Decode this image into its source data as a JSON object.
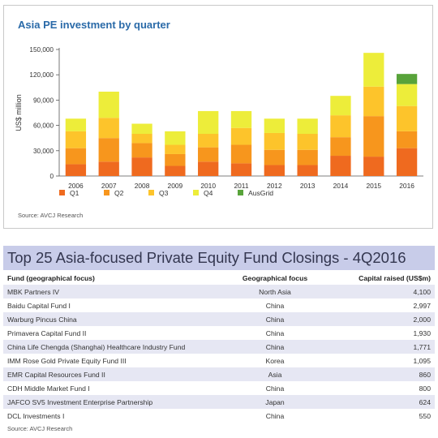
{
  "chart_data": {
    "type": "bar",
    "stacked": true,
    "title": "Asia PE investment by quarter",
    "ylabel": "US$ million",
    "ylim": [
      0,
      150000
    ],
    "yticks": [
      "0",
      "30,000",
      "60,000",
      "90,000",
      "120,000",
      "150,000"
    ],
    "categories": [
      "2006",
      "2007",
      "2008",
      "2009",
      "2010",
      "2011",
      "2012",
      "2013",
      "2014",
      "2015",
      "2016"
    ],
    "series": [
      {
        "name": "Q1",
        "color": "#ef6a1f",
        "values": [
          14000,
          17000,
          22000,
          12000,
          17000,
          15000,
          13000,
          13000,
          24000,
          23000,
          33000
        ]
      },
      {
        "name": "Q2",
        "color": "#f7961d",
        "values": [
          19000,
          28000,
          17000,
          14000,
          17000,
          22000,
          18000,
          18000,
          22000,
          48000,
          20000
        ]
      },
      {
        "name": "Q3",
        "color": "#fdc42b",
        "values": [
          20000,
          24000,
          11000,
          11000,
          16000,
          20000,
          20000,
          19000,
          26000,
          35000,
          30000
        ]
      },
      {
        "name": "Q4",
        "color": "#eded3a",
        "values": [
          15000,
          31000,
          12000,
          16000,
          27000,
          20000,
          17000,
          18000,
          23000,
          40000,
          26000
        ]
      },
      {
        "name": "AusGrid",
        "color": "#58a33a",
        "values": [
          0,
          0,
          0,
          0,
          0,
          0,
          0,
          0,
          0,
          0,
          12000
        ]
      }
    ],
    "source": "Source: AVCJ Research"
  },
  "table": {
    "title": "Top 25 Asia-focused Private Equity Fund Closings - 4Q2016",
    "headers": [
      "Fund (geographical focus)",
      "Geographical focus",
      "Capital raised (US$m)"
    ],
    "rows": [
      {
        "fund": "MBK Partners IV",
        "geo": "North Asia",
        "capital": "4,100"
      },
      {
        "fund": "Baidu Capital Fund I",
        "geo": "China",
        "capital": "2,997"
      },
      {
        "fund": "Warburg Pincus China",
        "geo": "China",
        "capital": "2,000"
      },
      {
        "fund": "Primavera Capital Fund II",
        "geo": "China",
        "capital": "1,930"
      },
      {
        "fund": "China Life Chengda (Shanghai) Healthcare Industry Fund",
        "geo": "China",
        "capital": "1,771"
      },
      {
        "fund": "IMM Rose Gold Private Equity Fund III",
        "geo": "Korea",
        "capital": "1,095"
      },
      {
        "fund": "EMR Capital Resources Fund II",
        "geo": "Asia",
        "capital": "860"
      },
      {
        "fund": "CDH Middle Market Fund I",
        "geo": "China",
        "capital": "800"
      },
      {
        "fund": "JAFCO SV5 Investment Enterprise Partnership",
        "geo": "Japan",
        "capital": "624"
      },
      {
        "fund": "DCL Investments I",
        "geo": "China",
        "capital": "550"
      }
    ],
    "source": "Source: AVCJ Research"
  }
}
